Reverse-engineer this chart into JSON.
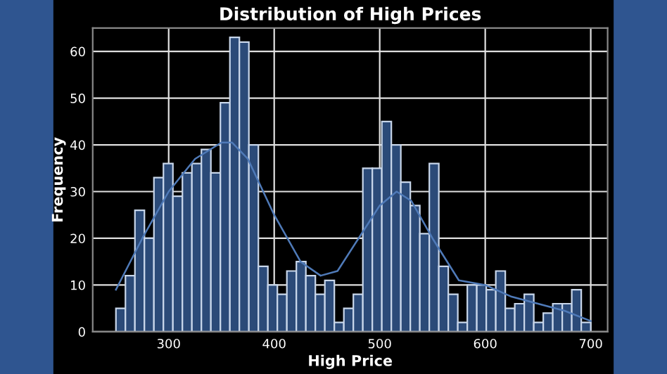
{
  "chart_data": {
    "type": "histogram",
    "title": "Distribution of High Prices",
    "xlabel": "High Price",
    "ylabel": "Frequency",
    "bins": [
      250,
      259,
      268,
      277,
      286,
      295,
      304,
      313,
      322,
      331,
      340,
      349,
      358,
      367,
      376,
      385,
      394,
      403,
      412,
      421,
      430,
      439,
      448,
      457,
      466,
      475,
      484,
      493,
      502,
      511,
      520,
      529,
      538,
      547,
      556,
      565,
      574,
      583,
      592,
      601,
      610,
      619,
      628,
      637,
      646,
      655,
      664,
      673,
      682,
      691,
      700
    ],
    "values": [
      5,
      12,
      26,
      20,
      33,
      36,
      29,
      34,
      36,
      39,
      34,
      49,
      63,
      62,
      40,
      14,
      10,
      8,
      13,
      15,
      12,
      8,
      11,
      2,
      5,
      8,
      35,
      35,
      45,
      40,
      32,
      27,
      21,
      36,
      14,
      8,
      2,
      10,
      10,
      9,
      13,
      5,
      6,
      8,
      2,
      4,
      6,
      6,
      9,
      2
    ],
    "color": "#2b4a78",
    "series": [
      {
        "type": "line",
        "color": "#4f7ab8",
        "x": [
          250,
          275,
          300,
          325,
          350,
          360,
          375,
          400,
          425,
          444,
          460,
          480,
          500,
          516,
          530,
          550,
          575,
          600,
          625,
          650,
          675,
          700
        ],
        "values": [
          9,
          20,
          30,
          37,
          40.5,
          40.5,
          37,
          25,
          15,
          12,
          13,
          20,
          27,
          30,
          28,
          20,
          11,
          10,
          7.5,
          6,
          4.5,
          2.3
        ]
      }
    ],
    "xlim": [
      228,
      716
    ],
    "ylim": [
      0,
      65
    ],
    "xticks": [
      300,
      400,
      500,
      600,
      700
    ],
    "yticks": [
      0,
      10,
      20,
      30,
      40,
      50,
      60
    ],
    "grid": true
  }
}
